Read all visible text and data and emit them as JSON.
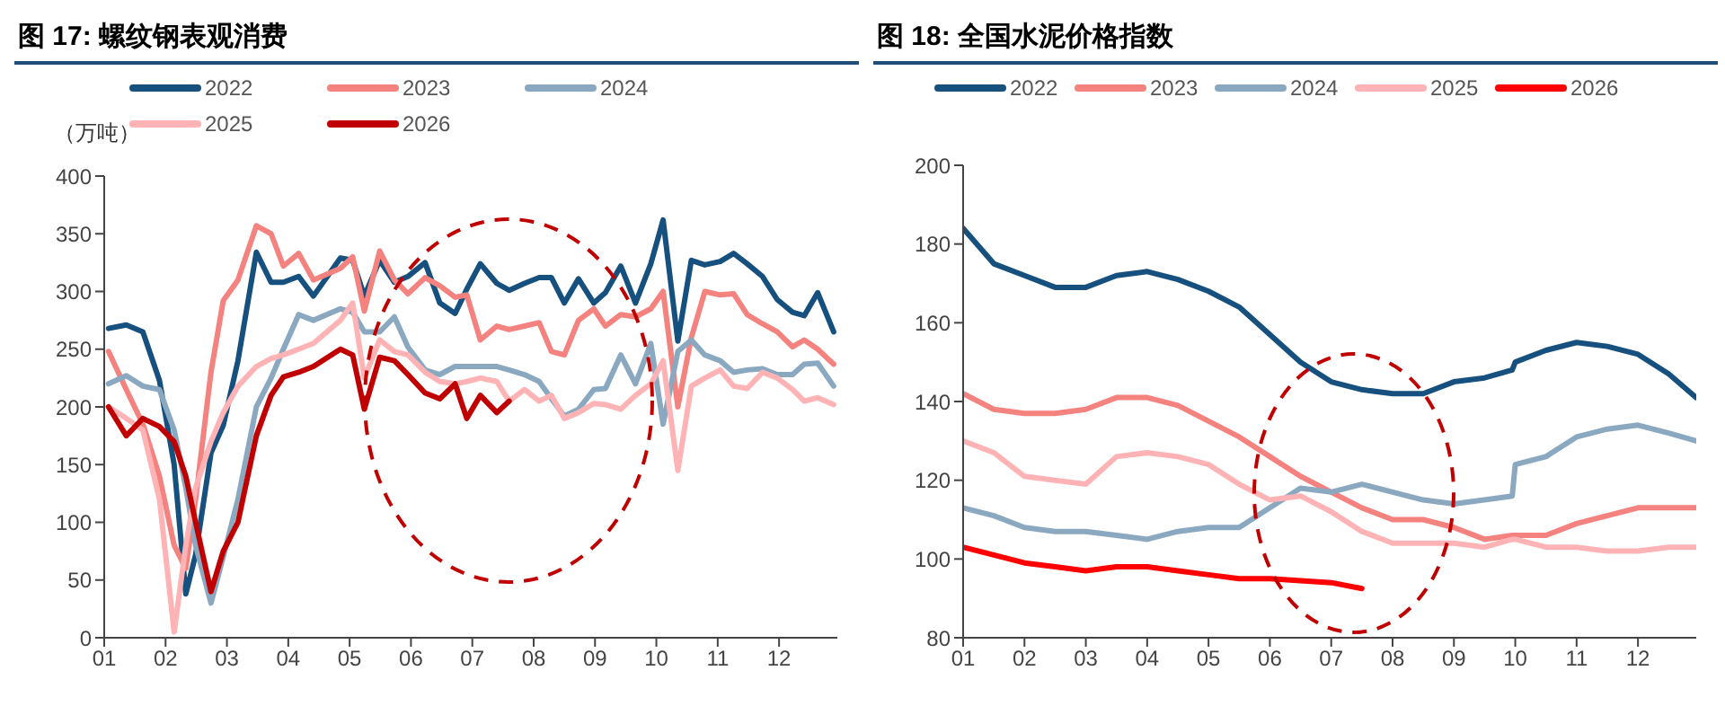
{
  "chart_data": [
    {
      "type": "line",
      "title": "图 17: 螺纹钢表观消费",
      "ylabel": "（万吨）",
      "legend": "top",
      "x": [
        1.07,
        1.36,
        1.63,
        1.9,
        2.14,
        2.33,
        2.49,
        2.74,
        2.94,
        3.18,
        3.48,
        3.72,
        3.92,
        4.17,
        4.41,
        4.85,
        5.05,
        5.24,
        5.49,
        5.73,
        5.95,
        6.23,
        6.47,
        6.72,
        6.91,
        7.13,
        7.4,
        7.6,
        7.85,
        8.09,
        8.29,
        8.5,
        8.73,
        8.98,
        9.17,
        9.42,
        9.66,
        9.91,
        10.11,
        10.35,
        10.57,
        10.79,
        11.04,
        11.26,
        11.48,
        11.73,
        11.97,
        12.22,
        12.41,
        12.63,
        12.89
      ],
      "xlim": [
        1,
        12.95
      ],
      "xticks": [
        {
          "value": 1,
          "label": "01"
        },
        {
          "value": 2,
          "label": "02"
        },
        {
          "value": 3,
          "label": "03"
        },
        {
          "value": 4,
          "label": "04"
        },
        {
          "value": 5,
          "label": "05"
        },
        {
          "value": 6,
          "label": "06"
        },
        {
          "value": 7,
          "label": "07"
        },
        {
          "value": 8,
          "label": "08"
        },
        {
          "value": 9,
          "label": "09"
        },
        {
          "value": 10,
          "label": "10"
        },
        {
          "value": 11,
          "label": "11"
        },
        {
          "value": 12,
          "label": "12"
        }
      ],
      "ylim": [
        0,
        400
      ],
      "yticks": [
        0,
        50,
        100,
        150,
        200,
        250,
        300,
        350,
        400
      ],
      "series": [
        {
          "name": "2022",
          "color": "#16507e",
          "values": [
            268,
            271,
            265,
            223,
            150,
            38,
            72,
            160,
            184,
            240,
            334,
            308,
            308,
            313,
            296,
            329,
            327,
            296,
            327,
            308,
            313,
            325,
            290,
            281,
            302,
            324,
            307,
            301,
            307,
            312,
            312,
            290,
            311,
            290,
            299,
            322,
            290,
            324,
            362,
            257,
            327,
            323,
            326,
            333,
            324,
            313,
            293,
            282,
            279,
            299,
            265
          ]
        },
        {
          "name": "2023",
          "color": "#f4827f",
          "values": [
            248,
            215,
            185,
            140,
            80,
            60,
            120,
            230,
            292,
            310,
            357,
            350,
            322,
            333,
            310,
            320,
            330,
            283,
            335,
            310,
            298,
            312,
            305,
            295,
            297,
            258,
            270,
            267,
            270,
            273,
            248,
            245,
            275,
            285,
            270,
            280,
            278,
            285,
            300,
            200,
            260,
            300,
            297,
            298,
            280,
            272,
            265,
            252,
            258,
            250,
            237
          ]
        },
        {
          "name": "2024",
          "color": "#8aa9c1",
          "values": [
            220,
            227,
            218,
            215,
            180,
            130,
            80,
            30,
            70,
            120,
            200,
            225,
            250,
            280,
            275,
            285,
            282,
            265,
            265,
            278,
            252,
            232,
            228,
            235,
            235,
            235,
            235,
            232,
            228,
            222,
            207,
            192,
            198,
            215,
            216,
            245,
            220,
            255,
            185,
            248,
            258,
            245,
            240,
            230,
            232,
            233,
            228,
            228,
            237,
            238,
            218
          ]
        },
        {
          "name": "2025",
          "color": "#ffb3b5",
          "values": [
            200,
            190,
            180,
            120,
            5,
            80,
            130,
            170,
            195,
            218,
            235,
            242,
            245,
            250,
            255,
            275,
            290,
            225,
            258,
            248,
            245,
            230,
            222,
            220,
            222,
            225,
            222,
            205,
            215,
            205,
            210,
            190,
            195,
            203,
            202,
            198,
            210,
            220,
            240,
            145,
            218,
            225,
            232,
            218,
            216,
            230,
            225,
            215,
            205,
            208,
            202
          ]
        },
        {
          "name": "2026",
          "color": "#c00000",
          "values": [
            200,
            175,
            190,
            183,
            170,
            140,
            100,
            40,
            75,
            100,
            175,
            210,
            226,
            230,
            235,
            250,
            245,
            198,
            243,
            240,
            228,
            212,
            207,
            220,
            190,
            210,
            195,
            205,
            null,
            null,
            null,
            null,
            null,
            null,
            null,
            null,
            null,
            null,
            null,
            null,
            null,
            null,
            null,
            null,
            null,
            null,
            null,
            null,
            null,
            null,
            null
          ]
        }
      ]
    },
    {
      "type": "line",
      "title": "图 18: 全国水泥价格指数",
      "legend": "top",
      "x": [
        1,
        1.5,
        2,
        2.5,
        3,
        3.5,
        4,
        4.5,
        5,
        5.5,
        6,
        6.5,
        7,
        7.5,
        8,
        8.5,
        9,
        9.5,
        9.95,
        10,
        10.5,
        11,
        11.5,
        12,
        12.5,
        12.95
      ],
      "xlim": [
        1,
        12.95
      ],
      "xticks": [
        {
          "value": 1,
          "label": "01"
        },
        {
          "value": 2,
          "label": "02"
        },
        {
          "value": 3,
          "label": "03"
        },
        {
          "value": 4,
          "label": "04"
        },
        {
          "value": 5,
          "label": "05"
        },
        {
          "value": 6,
          "label": "06"
        },
        {
          "value": 7,
          "label": "07"
        },
        {
          "value": 8,
          "label": "08"
        },
        {
          "value": 9,
          "label": "09"
        },
        {
          "value": 10,
          "label": "10"
        },
        {
          "value": 11,
          "label": "11"
        },
        {
          "value": 12,
          "label": "12"
        }
      ],
      "ylim": [
        80,
        200
      ],
      "yticks": [
        80,
        100,
        120,
        140,
        160,
        180,
        200
      ],
      "series": [
        {
          "name": "2022",
          "color": "#16507e",
          "values": [
            184,
            175,
            172,
            169,
            169,
            172,
            173,
            171,
            168,
            164,
            157,
            150,
            145,
            143,
            142,
            142,
            145,
            146,
            148,
            150,
            153,
            155,
            154,
            152,
            147,
            141
          ]
        },
        {
          "name": "2023",
          "color": "#f4827f",
          "values": [
            142,
            138,
            137,
            137,
            138,
            141,
            141,
            139,
            135,
            131,
            126,
            121,
            117,
            113,
            110,
            110,
            108,
            105,
            106,
            106,
            106,
            109,
            111,
            113,
            113,
            113
          ]
        },
        {
          "name": "2024",
          "color": "#8aa9c1",
          "values": [
            113,
            111,
            108,
            107,
            107,
            106,
            105,
            107,
            108,
            108,
            113,
            118,
            117,
            119,
            117,
            115,
            114,
            115,
            116,
            124,
            126,
            131,
            133,
            134,
            132,
            130
          ]
        },
        {
          "name": "2025",
          "color": "#ffb3b5",
          "values": [
            130,
            127,
            121,
            120,
            119,
            126,
            127,
            126,
            124,
            119,
            115,
            116,
            112,
            107,
            104,
            104,
            104,
            103,
            105,
            105,
            103,
            103,
            102,
            102,
            103,
            103
          ]
        },
        {
          "name": "2026",
          "color": "#ff0000",
          "values": [
            103,
            101,
            99,
            98,
            97,
            98,
            98,
            97,
            96,
            95,
            95,
            94.5,
            94,
            92.5,
            null,
            null,
            null,
            null,
            null,
            null,
            null,
            null,
            null,
            null,
            null,
            null
          ]
        }
      ]
    }
  ]
}
